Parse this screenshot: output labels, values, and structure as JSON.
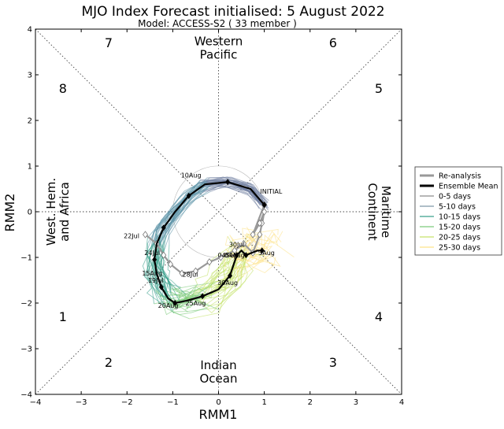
{
  "chart_data": {
    "type": "line",
    "title": "MJO Index Forecast initialised:  5  August 2022",
    "subtitle": "Model: ACCESS-S2 ( 33 member )",
    "xlabel": "RMM1",
    "ylabel": "RMM2",
    "xlim": [
      -4,
      4
    ],
    "ylim": [
      -4,
      4
    ],
    "xticks": [
      "−4",
      "−3",
      "−2",
      "−1",
      "0",
      "1",
      "2",
      "3",
      "4"
    ],
    "yticks": [
      "−4",
      "−3",
      "−2",
      "−1",
      "0",
      "1",
      "2",
      "3",
      "4"
    ],
    "grid": false,
    "legend_position": "right",
    "phases": [
      {
        "label": "1",
        "x": -3.4,
        "y": -2.4
      },
      {
        "label": "2",
        "x": -2.4,
        "y": -3.4
      },
      {
        "label": "3",
        "x": 2.5,
        "y": -3.4
      },
      {
        "label": "4",
        "x": 3.5,
        "y": -2.4
      },
      {
        "label": "5",
        "x": 3.5,
        "y": 2.6
      },
      {
        "label": "6",
        "x": 2.5,
        "y": 3.6
      },
      {
        "label": "7",
        "x": -2.4,
        "y": 3.6
      },
      {
        "label": "8",
        "x": -3.4,
        "y": 2.6
      }
    ],
    "regions": [
      {
        "lines": [
          "Western",
          "Pacific"
        ],
        "x": 0,
        "y": 3.65,
        "rotate": 0
      },
      {
        "lines": [
          "Indian",
          "Ocean"
        ],
        "x": 0,
        "y": -3.45,
        "rotate": 0
      },
      {
        "lines": [
          "West. Hem.",
          "and Africa"
        ],
        "x": -3.5,
        "y": 0,
        "rotate": -90
      },
      {
        "lines": [
          "Maritime",
          "Continent"
        ],
        "x": 3.5,
        "y": 0,
        "rotate": 90
      }
    ],
    "legend": [
      {
        "label": "Re-analysis",
        "color": "#999999",
        "width": 3
      },
      {
        "label": "Ensemble Mean",
        "color": "#000000",
        "width": 3
      },
      {
        "label": "0-5 days",
        "color": "#8c8c8c",
        "width": 1.2
      },
      {
        "label": "5-10 days",
        "color": "#7f96a6",
        "width": 1.2
      },
      {
        "label": "10-15 days",
        "color": "#3aa08c",
        "width": 1.2
      },
      {
        "label": "15-20 days",
        "color": "#7cc97a",
        "width": 1.2
      },
      {
        "label": "20-25 days",
        "color": "#c5e26b",
        "width": 1.2
      },
      {
        "label": "25-30 days",
        "color": "#fde38a",
        "width": 1.2
      }
    ],
    "reanalysis": {
      "x": [
        -1.6,
        -1.35,
        -1.2,
        -1.05,
        -0.8,
        -0.5,
        -0.2,
        0.05,
        0.35,
        0.55,
        0.75,
        0.9,
        0.95,
        1.0,
        0.9,
        0.75,
        1.0
      ],
      "y": [
        -0.5,
        -0.7,
        -0.95,
        -1.15,
        -1.35,
        -1.3,
        -1.1,
        -1.0,
        -0.85,
        -0.7,
        -0.9,
        -0.5,
        -0.25,
        0.0,
        -0.25,
        -0.5,
        0.15
      ],
      "labels": [
        {
          "text": "22Jul",
          "x": -1.6,
          "y": -0.5,
          "dx": -0.3,
          "dy": -0.08
        },
        {
          "text": "28Jul",
          "x": -0.5,
          "y": -1.3,
          "dx": -0.12,
          "dy": -0.12
        },
        {
          "text": "04Aug",
          "x": 0.05,
          "y": -1.0,
          "dx": 0.3,
          "dy": 0.0
        },
        {
          "text": "30Jul",
          "x": 0.3,
          "y": -0.85,
          "dx": 0.1,
          "dy": 0.08
        },
        {
          "text": "INITIAL",
          "x": 1.0,
          "y": 0.15,
          "dx": 0.15,
          "dy": 0.25
        }
      ]
    },
    "ensemble_mean": {
      "x": [
        1.0,
        0.7,
        0.2,
        -0.3,
        -0.65,
        -0.95,
        -1.2,
        -1.35,
        -1.4,
        -1.35,
        -1.25,
        -1.1,
        -0.95,
        -0.7,
        -0.35,
        0.0,
        0.25,
        0.35,
        0.4,
        0.5,
        0.6,
        0.85,
        0.95
      ],
      "y": [
        0.15,
        0.5,
        0.65,
        0.6,
        0.35,
        0.0,
        -0.35,
        -0.7,
        -1.05,
        -1.35,
        -1.65,
        -1.9,
        -2.0,
        -1.95,
        -1.85,
        -1.7,
        -1.4,
        -1.1,
        -0.95,
        -0.85,
        -0.95,
        -0.85,
        -0.85
      ],
      "labels": [
        {
          "text": "10Aug",
          "x": -0.3,
          "y": 0.6,
          "dx": -0.3,
          "dy": 0.15
        },
        {
          "text": "15Aug",
          "x": -1.25,
          "y": -1.35,
          "dx": -0.2,
          "dy": -0.05
        },
        {
          "text": "24Jul",
          "x": -1.3,
          "y": -0.9,
          "dx": -0.15,
          "dy": -0.05
        },
        {
          "text": "19Jul",
          "x": -1.25,
          "y": -1.45,
          "dx": -0.12,
          "dy": -0.1
        },
        {
          "text": "20Aug",
          "x": -0.95,
          "y": -2.0,
          "dx": -0.15,
          "dy": -0.1
        },
        {
          "text": "25Aug",
          "x": -0.35,
          "y": -1.85,
          "dx": -0.15,
          "dy": -0.2
        },
        {
          "text": "30Aug",
          "x": 0.25,
          "y": -1.4,
          "dx": -0.05,
          "dy": -0.2
        },
        {
          "text": "04Sep",
          "x": 0.4,
          "y": -0.95,
          "dx": -0.2,
          "dy": -0.05
        },
        {
          "text": "3Aug",
          "x": 0.95,
          "y": -0.85,
          "dx": 0.1,
          "dy": -0.1
        }
      ]
    },
    "member_colors": [
      "#5a5a8c",
      "#6f7fa0",
      "#5e95a8",
      "#3aa08c",
      "#7cc97a",
      "#c5e26b",
      "#fde38a"
    ]
  },
  "legend_title": ""
}
